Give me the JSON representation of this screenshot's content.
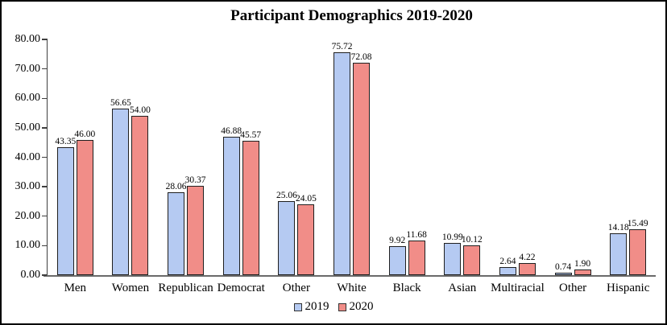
{
  "chart_data": {
    "type": "bar",
    "title": "Participant Demographics 2019-2020",
    "categories": [
      "Men",
      "Women",
      "Republican",
      "Democrat",
      "Other",
      "White",
      "Black",
      "Asian",
      "Multiracial",
      "Other",
      "Hispanic"
    ],
    "series": [
      {
        "name": "2019",
        "color": "#b5caf2",
        "values": [
          43.35,
          56.65,
          28.06,
          46.88,
          25.06,
          75.72,
          9.92,
          10.99,
          2.64,
          0.74,
          14.18
        ]
      },
      {
        "name": "2020",
        "color": "#f18d88",
        "values": [
          46.0,
          54.0,
          30.37,
          45.57,
          24.05,
          72.08,
          11.68,
          10.12,
          4.22,
          1.9,
          15.49
        ]
      }
    ],
    "ylim": [
      0,
      80
    ],
    "yticks": [
      "80.00",
      "70.00",
      "60.00",
      "50.00",
      "40.00",
      "30.00",
      "20.00",
      "10.00",
      "0.00"
    ],
    "value_label_decimals": 2,
    "grid": false,
    "legend_position": "bottom",
    "bar_border_color": "#1f1f1f",
    "axis_color": "#3f3f3f",
    "baseline_color": "#6a6a6a"
  }
}
